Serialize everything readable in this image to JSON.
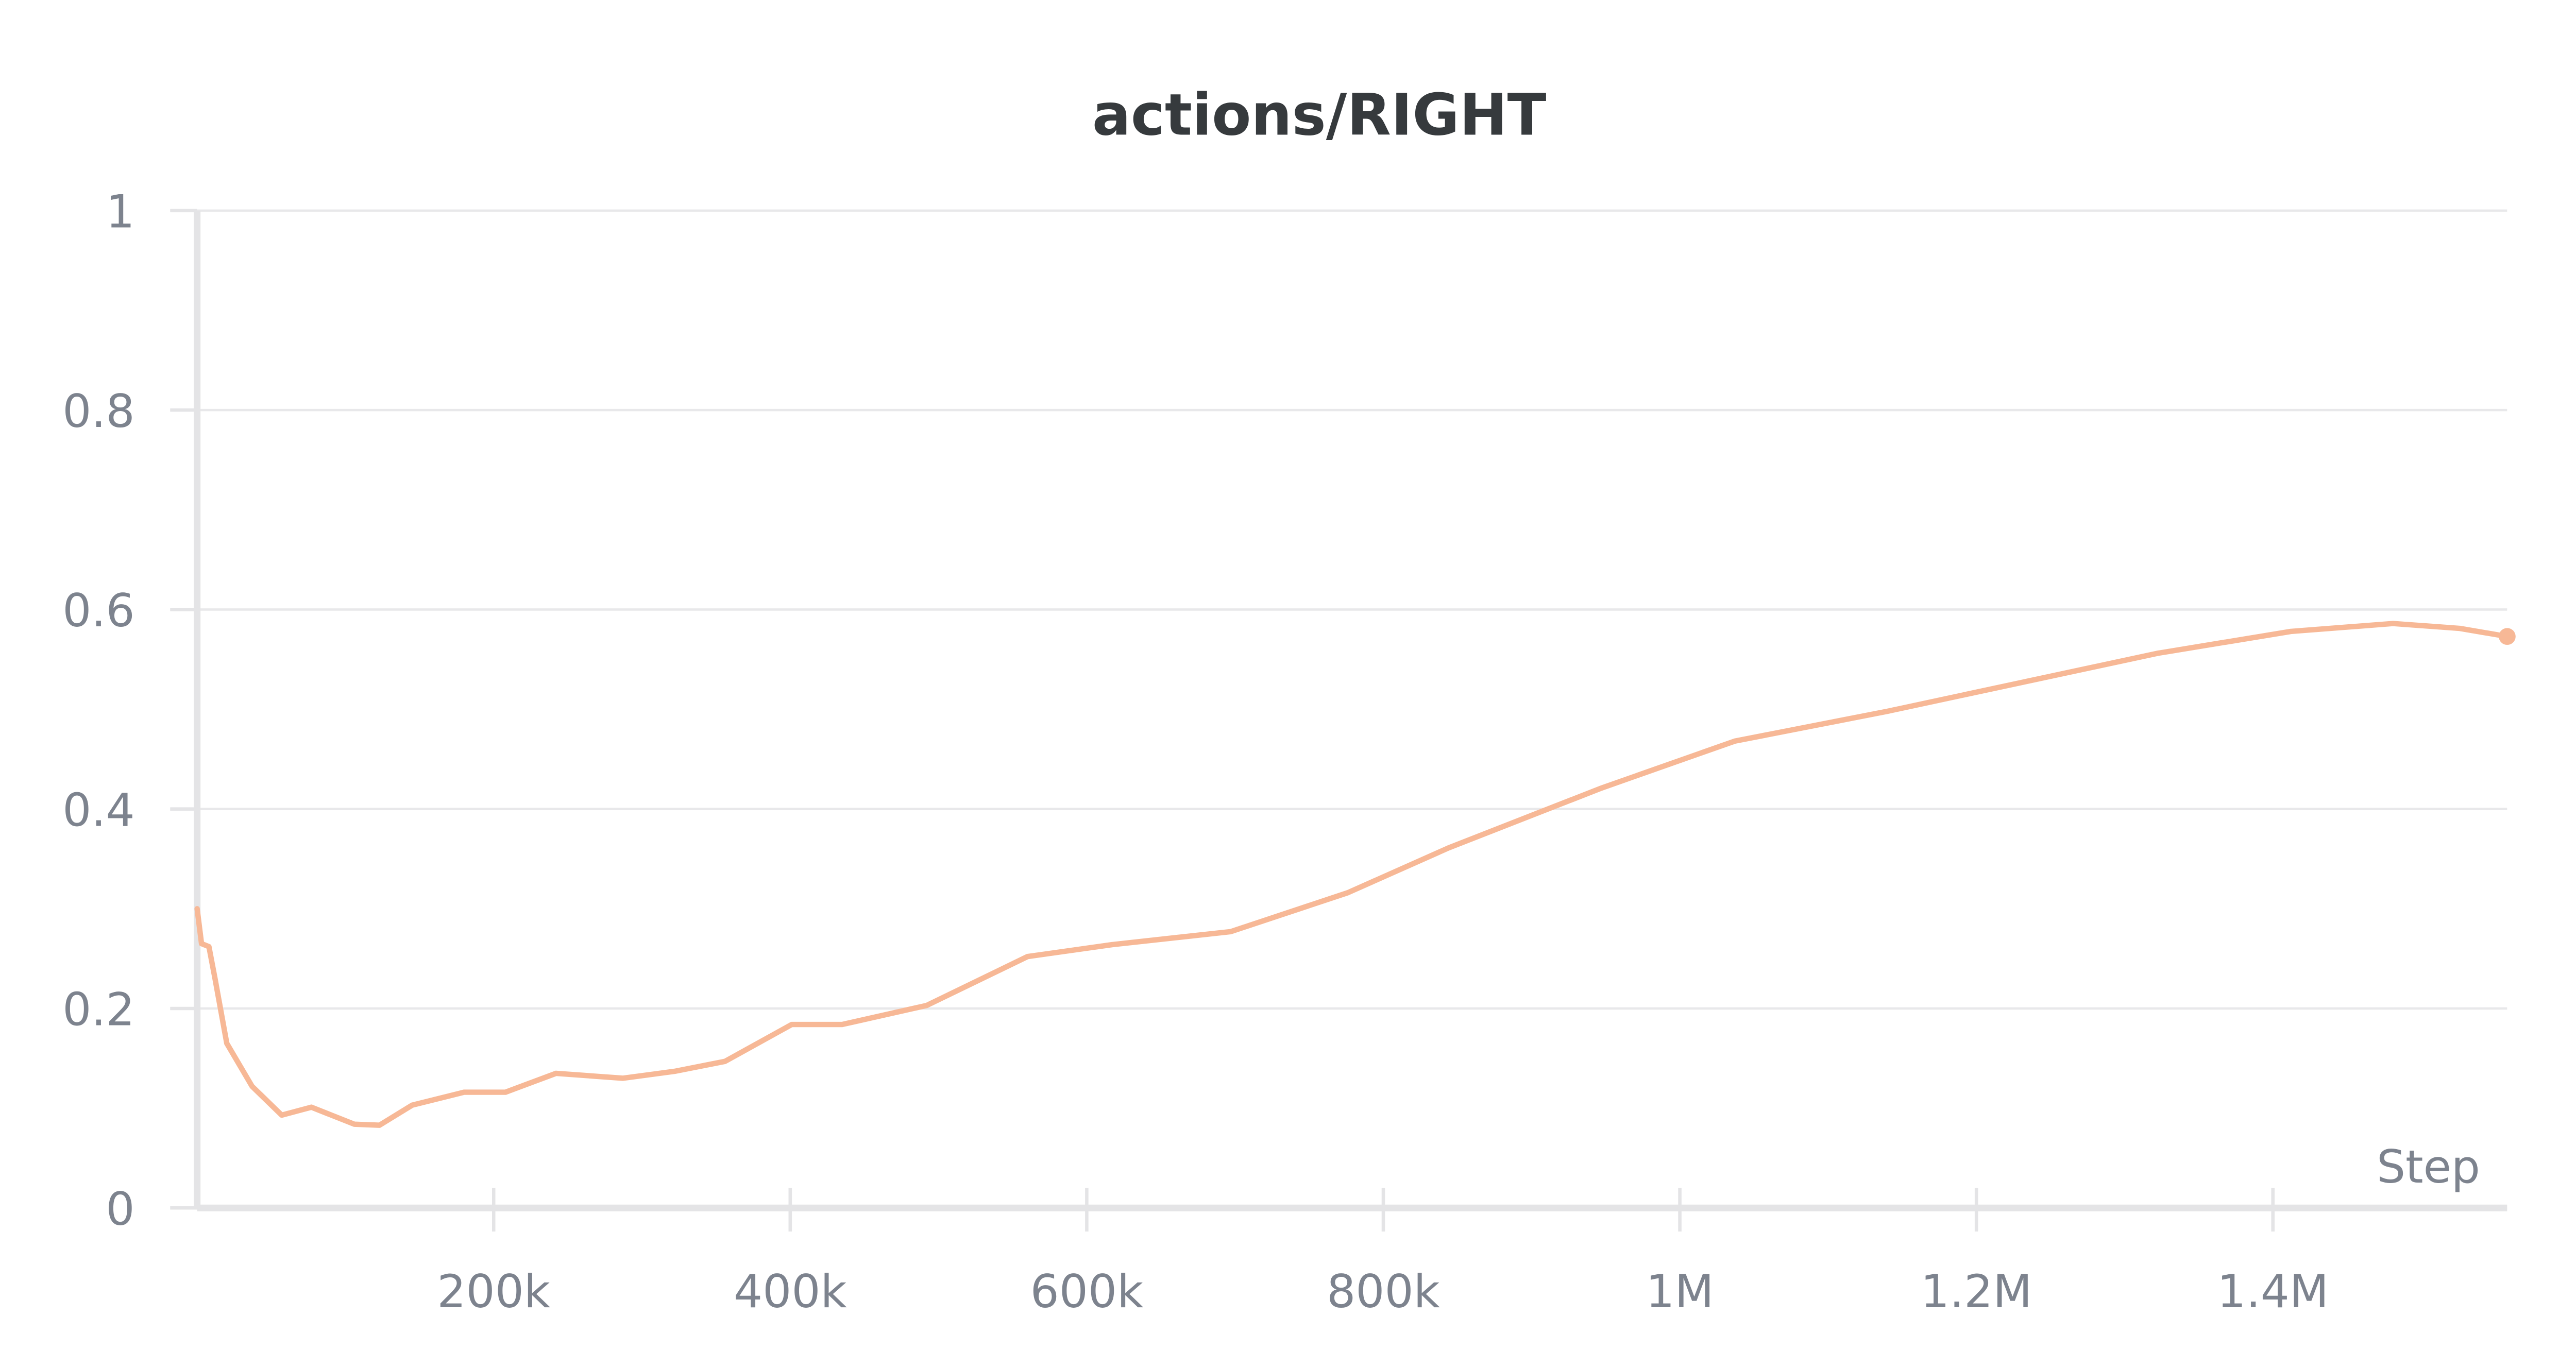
{
  "chart_data": {
    "type": "line",
    "title": "actions/RIGHT",
    "xlabel": "Step",
    "ylabel": "",
    "xlim": [
      0,
      1558000
    ],
    "ylim": [
      0,
      1
    ],
    "grid": true,
    "legend": null,
    "x_ticks": [
      {
        "value": 200000,
        "label": "200k"
      },
      {
        "value": 400000,
        "label": "400k"
      },
      {
        "value": 600000,
        "label": "600k"
      },
      {
        "value": 800000,
        "label": "800k"
      },
      {
        "value": 1000000,
        "label": "1M"
      },
      {
        "value": 1200000,
        "label": "1.2M"
      },
      {
        "value": 1400000,
        "label": "1.4M"
      }
    ],
    "y_ticks": [
      {
        "value": 0,
        "label": "0"
      },
      {
        "value": 0.2,
        "label": "0.2"
      },
      {
        "value": 0.4,
        "label": "0.4"
      },
      {
        "value": 0.6,
        "label": "0.6"
      },
      {
        "value": 0.8,
        "label": "0.8"
      },
      {
        "value": 1,
        "label": "1"
      }
    ],
    "series": [
      {
        "name": "actions/RIGHT",
        "color": "#f7b896",
        "x": [
          0,
          3000,
          8000,
          12000,
          20000,
          37000,
          57000,
          77000,
          106000,
          123000,
          145000,
          180000,
          208000,
          242000,
          287000,
          322000,
          356000,
          401000,
          435000,
          492000,
          560000,
          617000,
          697000,
          776000,
          844000,
          947000,
          1037000,
          1140000,
          1231000,
          1322000,
          1412000,
          1481000,
          1526000,
          1558000
        ],
        "values": [
          0.3,
          0.265,
          0.262,
          0.23,
          0.165,
          0.122,
          0.093,
          0.101,
          0.084,
          0.083,
          0.103,
          0.116,
          0.116,
          0.135,
          0.13,
          0.137,
          0.147,
          0.184,
          0.184,
          0.203,
          0.252,
          0.264,
          0.277,
          0.316,
          0.361,
          0.421,
          0.468,
          0.498,
          0.527,
          0.556,
          0.578,
          0.586,
          0.581,
          0.573
        ]
      }
    ]
  }
}
